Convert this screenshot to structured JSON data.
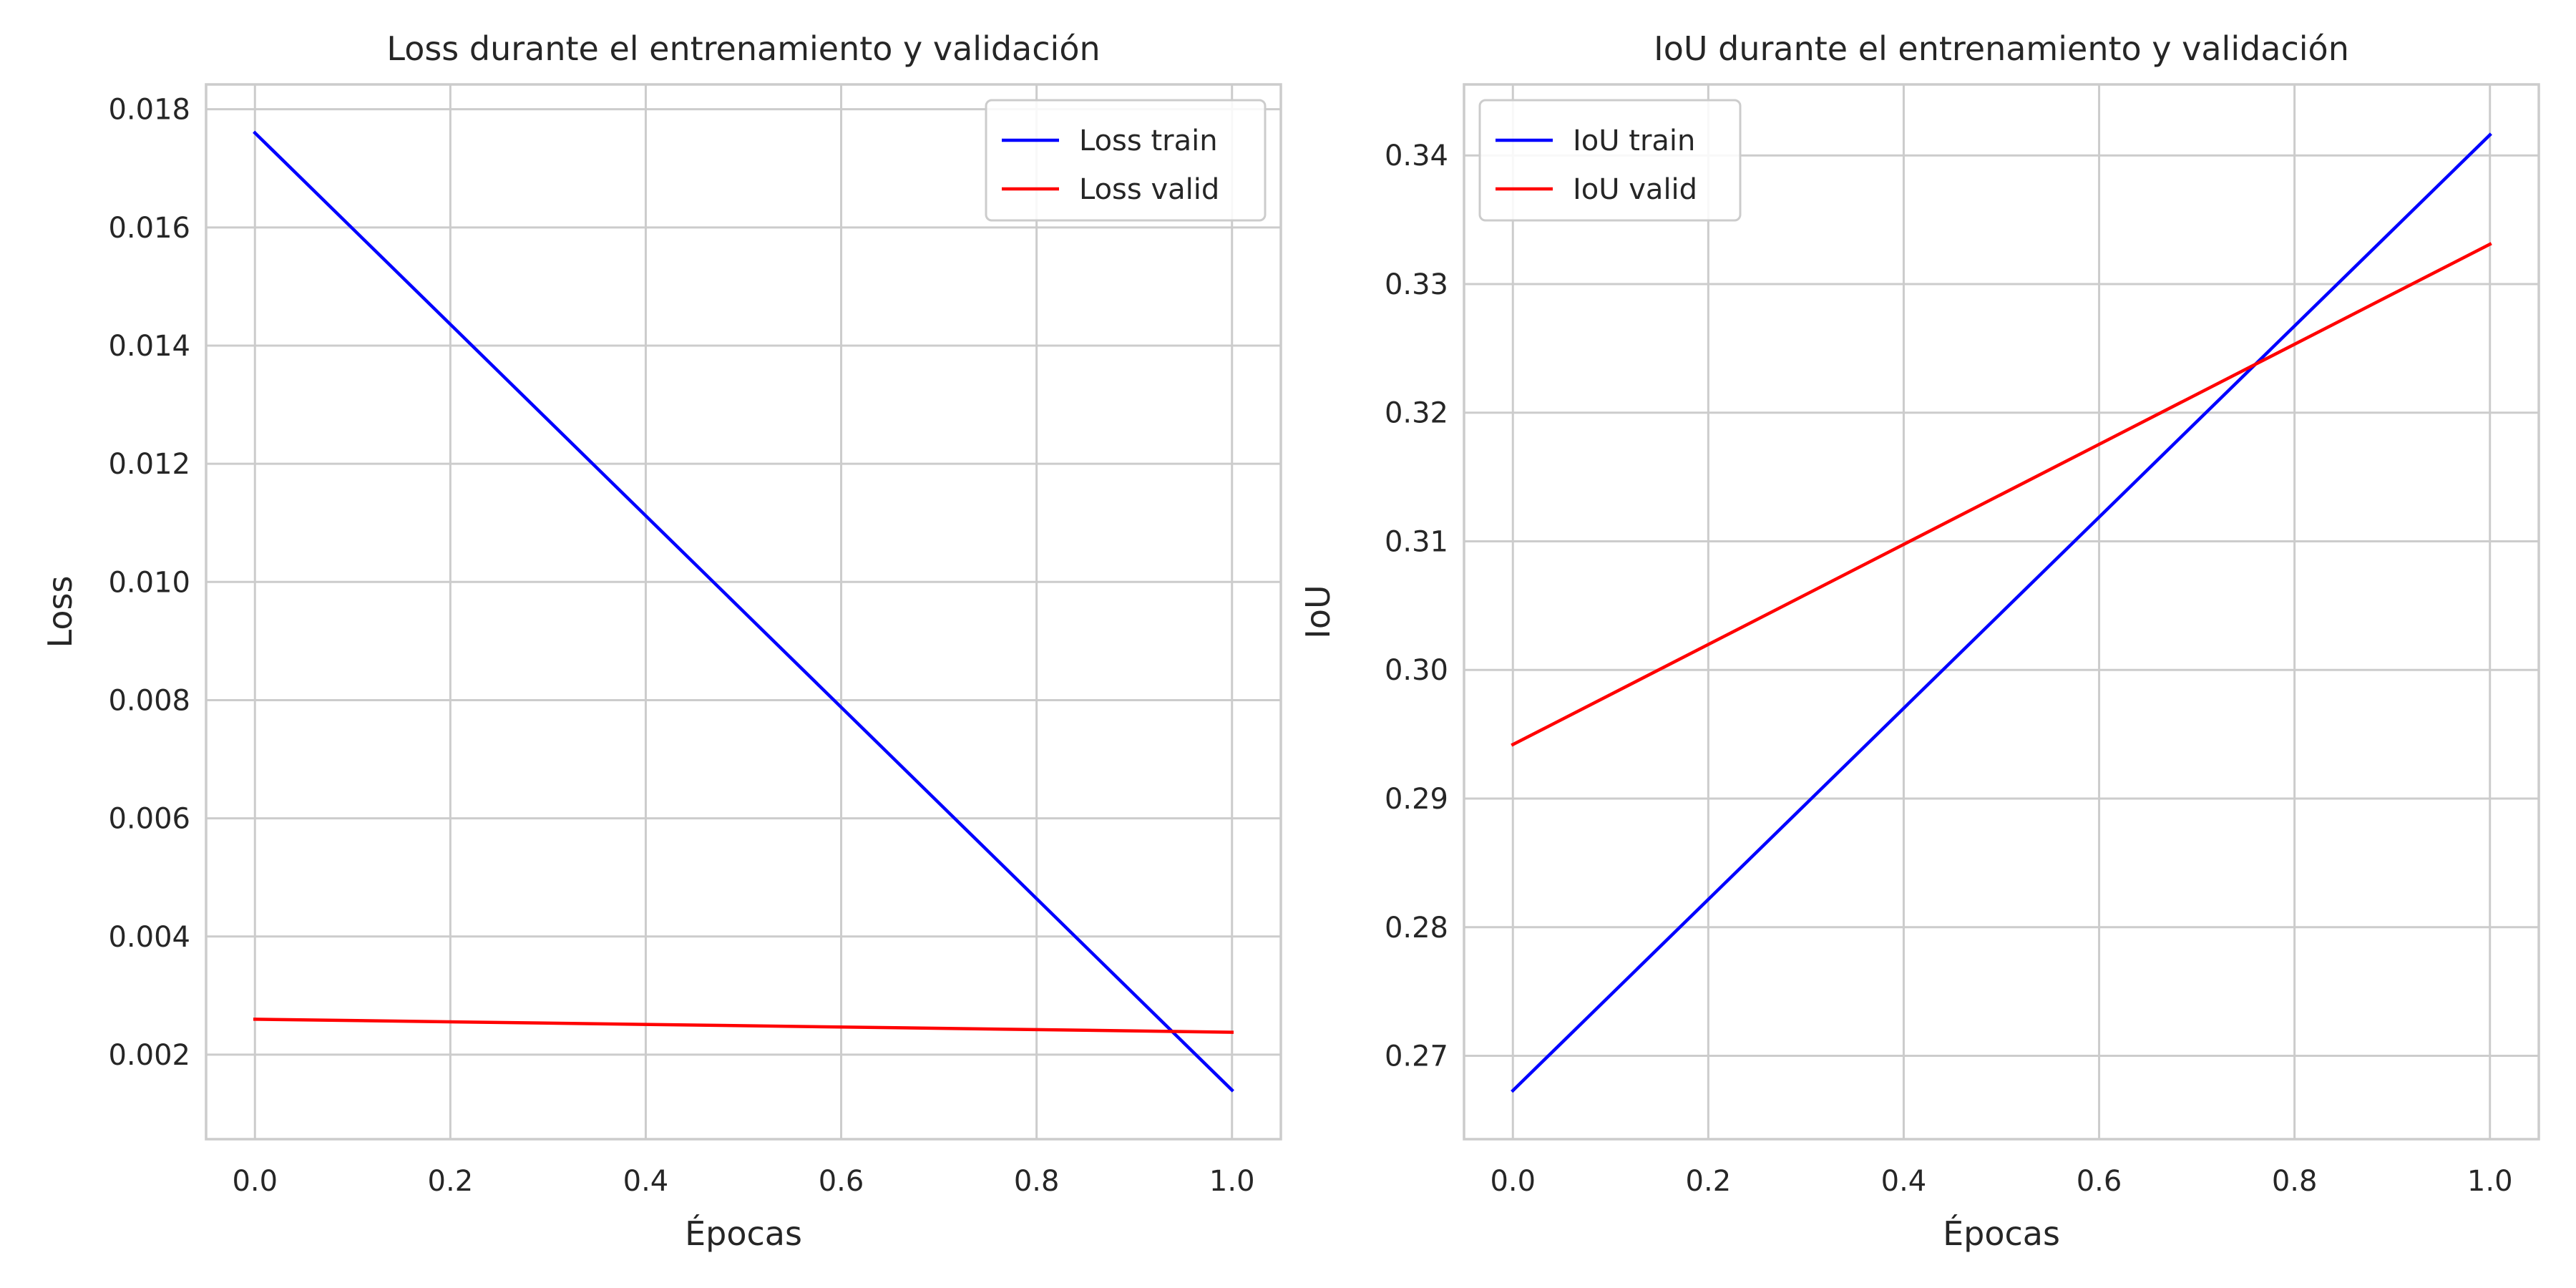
{
  "chart_data": [
    {
      "type": "line",
      "title": "Loss durante el entrenamiento y validación",
      "xlabel": "Épocas",
      "ylabel": "Loss",
      "xlim": [
        -0.05,
        1.05
      ],
      "ylim": [
        0.00057,
        0.01842
      ],
      "grid": true,
      "legend_position": "top-right",
      "xticks": [
        0.0,
        0.2,
        0.4,
        0.6,
        0.8,
        1.0
      ],
      "xtick_labels": [
        "0.0",
        "0.2",
        "0.4",
        "0.6",
        "0.8",
        "1.0"
      ],
      "yticks": [
        0.002,
        0.004,
        0.006,
        0.008,
        0.01,
        0.012,
        0.014,
        0.016,
        0.018
      ],
      "ytick_labels": [
        "0.002",
        "0.004",
        "0.006",
        "0.008",
        "0.010",
        "0.012",
        "0.014",
        "0.016",
        "0.018"
      ],
      "series": [
        {
          "name": "Loss train",
          "color": "#0000ff",
          "x": [
            0.0,
            1.0
          ],
          "y": [
            0.0176,
            0.0014
          ]
        },
        {
          "name": "Loss valid",
          "color": "#ff0000",
          "x": [
            0.0,
            1.0
          ],
          "y": [
            0.0026,
            0.00238
          ]
        }
      ]
    },
    {
      "type": "line",
      "title": "IoU durante el entrenamiento y validación",
      "xlabel": "Épocas",
      "ylabel": "IoU",
      "xlim": [
        -0.05,
        1.05
      ],
      "ylim": [
        0.26352,
        0.34552
      ],
      "grid": true,
      "legend_position": "top-left",
      "xticks": [
        0.0,
        0.2,
        0.4,
        0.6,
        0.8,
        1.0
      ],
      "xtick_labels": [
        "0.0",
        "0.2",
        "0.4",
        "0.6",
        "0.8",
        "1.0"
      ],
      "yticks": [
        0.27,
        0.28,
        0.29,
        0.3,
        0.31,
        0.32,
        0.33,
        0.34
      ],
      "ytick_labels": [
        "0.27",
        "0.28",
        "0.29",
        "0.30",
        "0.31",
        "0.32",
        "0.33",
        "0.34"
      ],
      "series": [
        {
          "name": "IoU train",
          "color": "#0000ff",
          "x": [
            0.0,
            1.0
          ],
          "y": [
            0.2673,
            0.3416
          ]
        },
        {
          "name": "IoU valid",
          "color": "#ff0000",
          "x": [
            0.0,
            1.0
          ],
          "y": [
            0.2942,
            0.3331
          ]
        }
      ]
    }
  ],
  "style": {
    "grid_color": "#cccccc",
    "spine_color": "#cccccc",
    "text_color": "#262626",
    "background": "#ffffff"
  }
}
